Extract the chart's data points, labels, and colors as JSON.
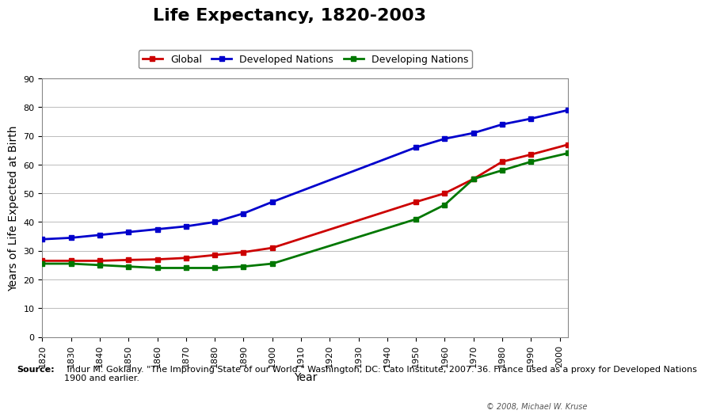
{
  "title": "Life Expectancy, 1820-2003",
  "xlabel": "Year",
  "ylabel": "Years of Life Expected at Birth",
  "series": [
    {
      "label": "Global",
      "color": "#CC0000",
      "marker": "s",
      "years": [
        1820,
        1830,
        1840,
        1850,
        1860,
        1870,
        1880,
        1890,
        1900,
        1950,
        1960,
        1970,
        1980,
        1990,
        2003
      ],
      "values": [
        26.5,
        26.5,
        26.5,
        26.8,
        27.0,
        27.5,
        28.5,
        29.5,
        31.0,
        47.0,
        50.0,
        55.0,
        61.0,
        63.5,
        67.0
      ]
    },
    {
      "label": "Developed Nations",
      "color": "#0000CC",
      "marker": "s",
      "years": [
        1820,
        1830,
        1840,
        1850,
        1860,
        1870,
        1880,
        1890,
        1900,
        1950,
        1960,
        1970,
        1980,
        1990,
        2003
      ],
      "values": [
        34.0,
        34.5,
        35.5,
        36.5,
        37.5,
        38.5,
        40.0,
        43.0,
        47.0,
        66.0,
        69.0,
        71.0,
        74.0,
        76.0,
        79.0
      ]
    },
    {
      "label": "Developing Nations",
      "color": "#007700",
      "marker": "s",
      "years": [
        1820,
        1830,
        1840,
        1850,
        1860,
        1870,
        1880,
        1890,
        1900,
        1950,
        1960,
        1970,
        1980,
        1990,
        2003
      ],
      "values": [
        25.5,
        25.5,
        25.0,
        24.5,
        24.0,
        24.0,
        24.0,
        24.5,
        25.5,
        41.0,
        46.0,
        55.0,
        58.0,
        61.0,
        64.0
      ]
    }
  ],
  "ylim": [
    0,
    90
  ],
  "yticks": [
    0,
    10,
    20,
    30,
    40,
    50,
    60,
    70,
    80,
    90
  ],
  "xticks": [
    1820,
    1830,
    1840,
    1850,
    1860,
    1870,
    1880,
    1890,
    1900,
    1910,
    1920,
    1930,
    1940,
    1950,
    1960,
    1970,
    1980,
    1990,
    2000
  ],
  "source_bold": "Source:",
  "source_text": " Indur M. Goklany. \"The Improving State of our World.\" Washington, DC: Cato Institute, 2007. 36. France used as a proxy for Developed Nations\n1900 and earlier.",
  "copyright_text": "© 2008, Michael W. Kruse",
  "bg_color": "#FFFFFF",
  "plot_bg_color": "#FFFFFF",
  "grid_color": "#BBBBBB",
  "title_fontsize": 16,
  "axis_label_fontsize": 10,
  "tick_fontsize": 8,
  "legend_fontsize": 9,
  "source_fontsize": 8,
  "line_width": 2.0,
  "marker_size": 5
}
